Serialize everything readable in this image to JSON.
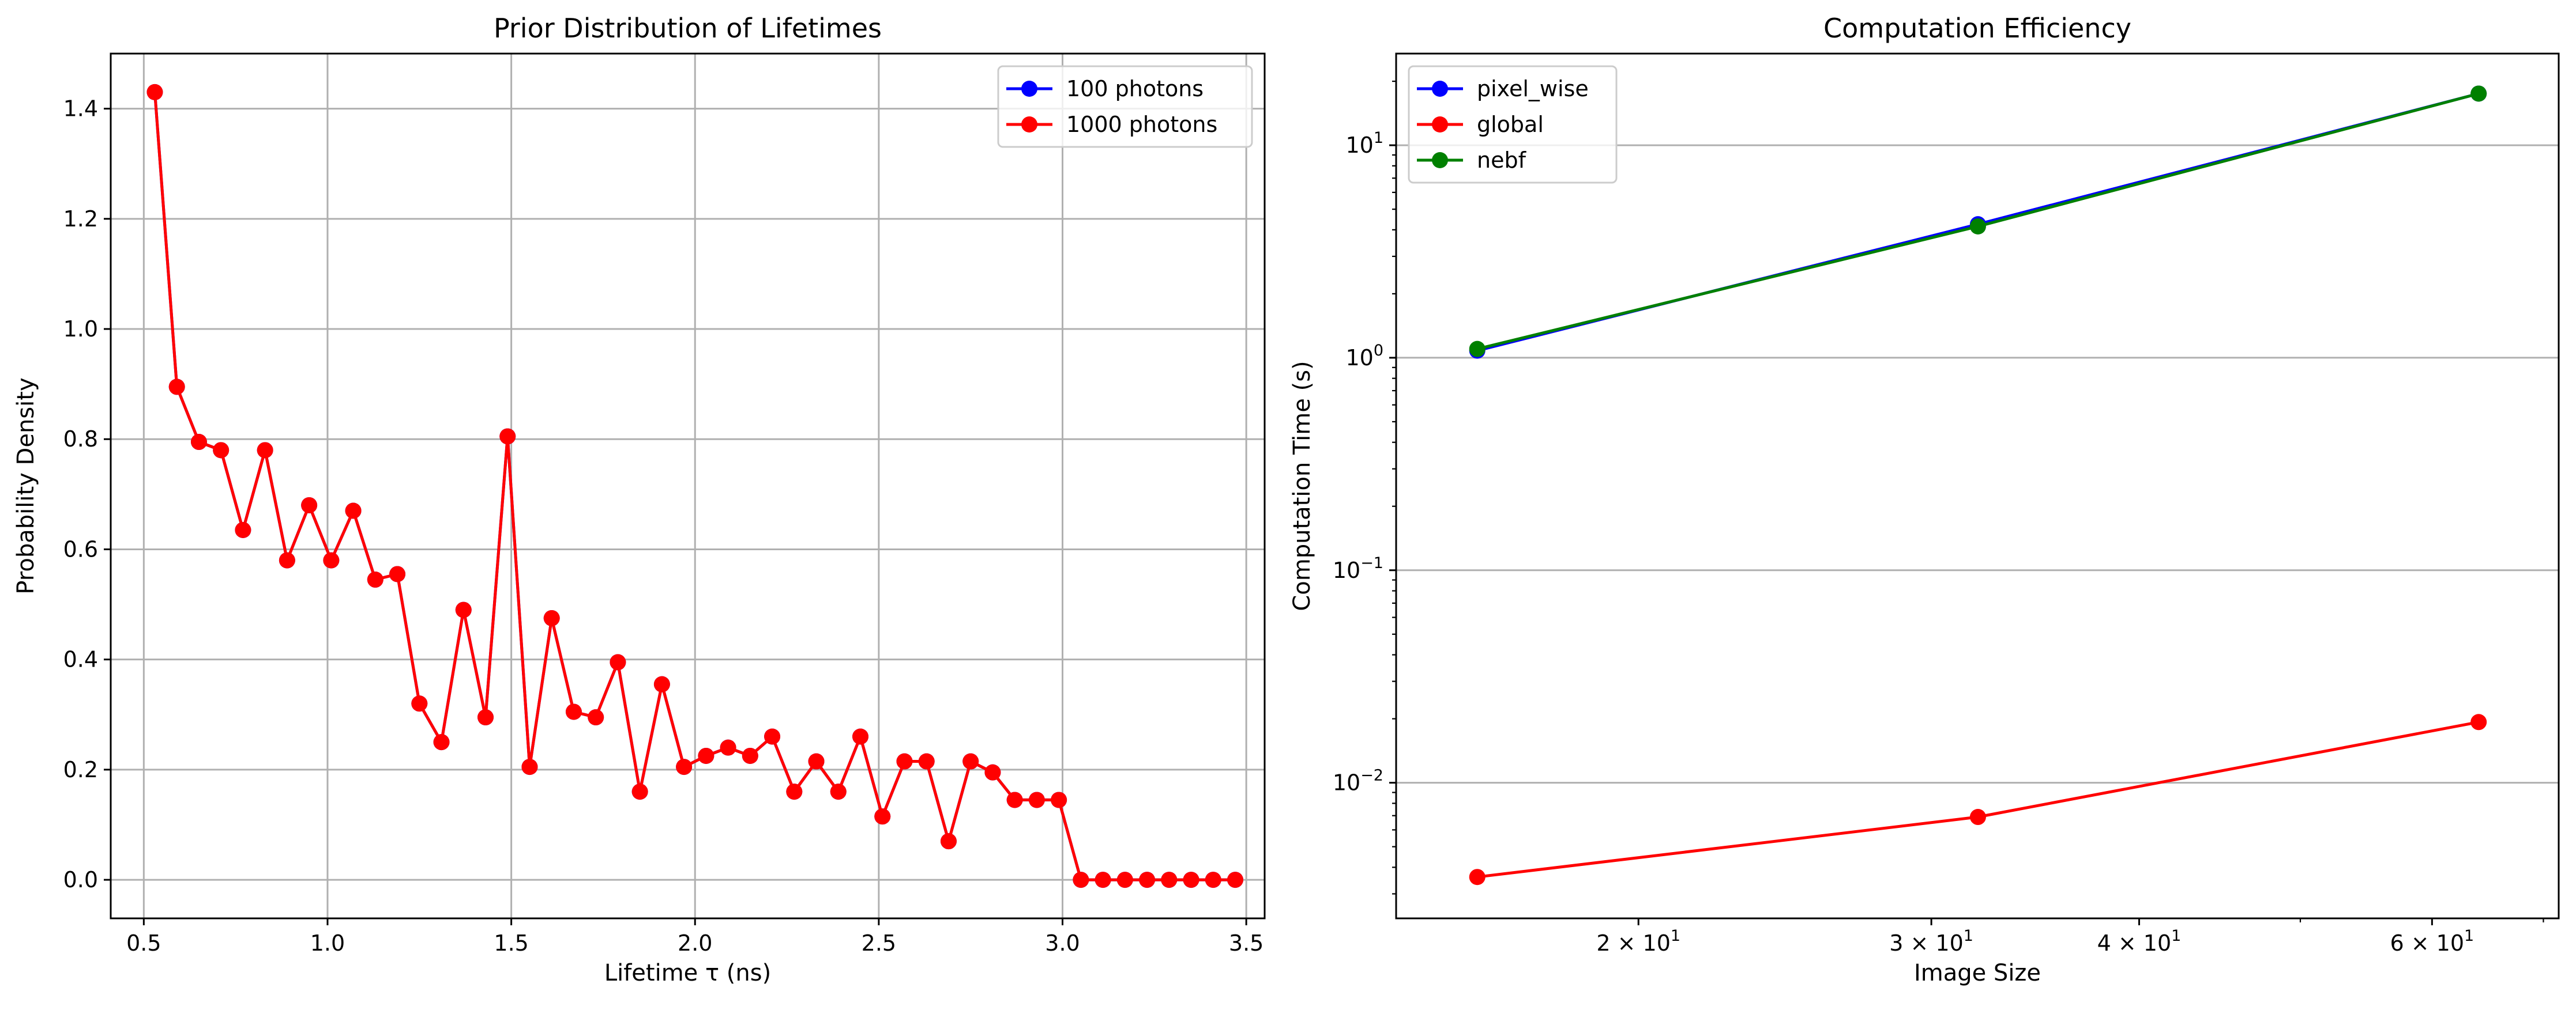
{
  "chart_data": [
    {
      "type": "line",
      "title": "Prior Distribution of Lifetimes",
      "xlabel": "Lifetime τ (ns)",
      "ylabel": "Probability Density",
      "xlim": [
        0.41,
        3.55
      ],
      "ylim": [
        -0.07,
        1.5
      ],
      "xticks": [
        0.5,
        1.0,
        1.5,
        2.0,
        2.5,
        3.0,
        3.5
      ],
      "xtick_labels": [
        "0.5",
        "1.0",
        "1.5",
        "2.0",
        "2.5",
        "3.0",
        "3.5"
      ],
      "yticks": [
        0.0,
        0.2,
        0.4,
        0.6,
        0.8,
        1.0,
        1.2,
        1.4
      ],
      "ytick_labels": [
        "0.0",
        "0.2",
        "0.4",
        "0.6",
        "0.8",
        "1.0",
        "1.2",
        "1.4"
      ],
      "grid": true,
      "legend_position": "top-right",
      "x": [
        0.53,
        0.59,
        0.65,
        0.71,
        0.77,
        0.83,
        0.89,
        0.95,
        1.01,
        1.07,
        1.13,
        1.19,
        1.25,
        1.31,
        1.37,
        1.43,
        1.49,
        1.55,
        1.61,
        1.67,
        1.73,
        1.79,
        1.85,
        1.91,
        1.97,
        2.03,
        2.09,
        2.15,
        2.21,
        2.27,
        2.33,
        2.39,
        2.45,
        2.51,
        2.57,
        2.63,
        2.69,
        2.75,
        2.81,
        2.87,
        2.93,
        2.99,
        3.05,
        3.11,
        3.17,
        3.23,
        3.29,
        3.35,
        3.41,
        3.47
      ],
      "series": [
        {
          "name": "100 photons",
          "color": "#0000ff",
          "values": [
            1.43,
            0.895,
            0.795,
            0.78,
            0.635,
            0.78,
            0.58,
            0.68,
            0.58,
            0.67,
            0.545,
            0.555,
            0.32,
            0.25,
            0.49,
            0.295,
            0.805,
            0.205,
            0.475,
            0.305,
            0.295,
            0.395,
            0.16,
            0.355,
            0.205,
            0.225,
            0.24,
            0.225,
            0.26,
            0.16,
            0.215,
            0.16,
            0.26,
            0.115,
            0.215,
            0.215,
            0.07,
            0.215,
            0.195,
            0.145,
            0.145,
            0.145,
            0.0,
            0.0,
            0.0,
            0.0,
            0.0,
            0.0,
            0.0,
            0.0
          ]
        },
        {
          "name": "1000 photons",
          "color": "#ff0000",
          "values": [
            1.43,
            0.895,
            0.795,
            0.78,
            0.635,
            0.78,
            0.58,
            0.68,
            0.58,
            0.67,
            0.545,
            0.555,
            0.32,
            0.25,
            0.49,
            0.295,
            0.805,
            0.205,
            0.475,
            0.305,
            0.295,
            0.395,
            0.16,
            0.355,
            0.205,
            0.225,
            0.24,
            0.225,
            0.26,
            0.16,
            0.215,
            0.16,
            0.26,
            0.115,
            0.215,
            0.215,
            0.07,
            0.215,
            0.195,
            0.145,
            0.145,
            0.145,
            0.0,
            0.0,
            0.0,
            0.0,
            0.0,
            0.0,
            0.0,
            0.0
          ]
        }
      ]
    },
    {
      "type": "line",
      "title": "Computation Efficiency",
      "xlabel": "Image Size",
      "ylabel": "Computation Time (s)",
      "xscale": "log",
      "yscale": "log",
      "xlim": [
        14.3,
        71.5
      ],
      "ylim": [
        0.0023,
        27
      ],
      "xticks": [
        20,
        30,
        40,
        60
      ],
      "xtick_labels": [
        {
          "base": "2 × 10",
          "exp": "1"
        },
        {
          "base": "3 × 10",
          "exp": "1"
        },
        {
          "base": "4 × 10",
          "exp": "1"
        },
        {
          "base": "6 × 10",
          "exp": "1"
        }
      ],
      "yticks": [
        0.01,
        0.1,
        1,
        10
      ],
      "ytick_labels": [
        {
          "base": "10",
          "exp": "−2"
        },
        {
          "base": "10",
          "exp": "−1"
        },
        {
          "base": "10",
          "exp": "0"
        },
        {
          "base": "10",
          "exp": "1"
        }
      ],
      "grid": "y-major",
      "legend_position": "top-left",
      "x": [
        16,
        32,
        64
      ],
      "series": [
        {
          "name": "pixel_wise",
          "color": "#0000ff",
          "values": [
            1.08,
            4.25,
            17.5
          ]
        },
        {
          "name": "global",
          "color": "#ff0000",
          "values": [
            0.0036,
            0.0069,
            0.0193
          ]
        },
        {
          "name": "nebf",
          "color": "#008000",
          "values": [
            1.1,
            4.15,
            17.5
          ]
        }
      ]
    }
  ]
}
